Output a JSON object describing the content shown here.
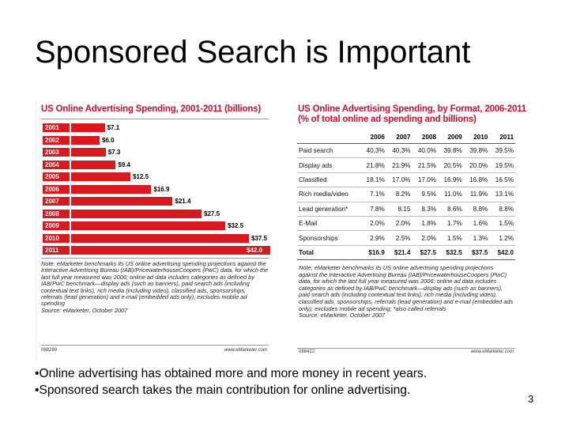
{
  "slide": {
    "title": "Sponsored Search is Important",
    "bullets": [
      "•Online advertising has obtained more and more money in recent years.",
      "•Sponsored search takes the main contribution for online advertising."
    ],
    "page_number": "3"
  },
  "left_chart": {
    "title": "US Online Advertising Spending, 2001-2011 (billions)",
    "note": "Note: eMarketer benchmarks its US online advertising spending projections against the Interactive Advertising Bureau (IAB)/PricewaterhouseCoopers (PwC) data, for which the last full year measured was 2006; online ad data includes categories as defined by IAB/PwC benchmark—display ads (such as banners), paid search ads (including contextual text links), rich media (including video), classified ads, sponsorships, referrals (lead generation) and e-mail (embedded ads only); excludes mobile ad spending",
    "source": "Source: eMarketer, October 2007",
    "figure_id": "088299",
    "brand": "www.eMarketer.com",
    "colors": {
      "bar": "#d71920",
      "title": "#c8102e"
    }
  },
  "chart_data": {
    "type": "bar",
    "orientation": "horizontal",
    "title": "US Online Advertising Spending, 2001-2011 (billions)",
    "categories": [
      "2001",
      "2002",
      "2003",
      "2004",
      "2005",
      "2006",
      "2007",
      "2008",
      "2009",
      "2010",
      "2011"
    ],
    "values": [
      7.1,
      6.0,
      7.3,
      9.4,
      12.5,
      16.9,
      21.4,
      27.5,
      32.5,
      37.5,
      42.0
    ],
    "value_labels": [
      "$7.1",
      "$6.0",
      "$7.3",
      "$9.4",
      "$12.5",
      "$16.9",
      "$21.4",
      "$27.5",
      "$32.5",
      "$37.5",
      "$42.0"
    ],
    "xlim": [
      0,
      42.0
    ],
    "grid": false,
    "legend": "none"
  },
  "right_table": {
    "title_line1": "US Online Advertising Spending, by Format, 2006-2011",
    "title_line2": "(% of total online ad spending and billions)",
    "headers": [
      "",
      "2006",
      "2007",
      "2008",
      "2009",
      "2010",
      "2011"
    ],
    "rows": [
      [
        "Paid search",
        "40.3%",
        "40.3%",
        "40.0%",
        "39.8%",
        "39.8%",
        "39.5%"
      ],
      [
        "Display ads",
        "21.8%",
        "21.9%",
        "21.5%",
        "20.5%",
        "20.0%",
        "19.5%"
      ],
      [
        "Classified",
        "18.1%",
        "17.0%",
        "17.0%",
        "16.9%",
        "16.8%",
        "16.5%"
      ],
      [
        "Rich media/video",
        "7.1%",
        "8.2%",
        "9.5%",
        "11.0%",
        "11.9%",
        "13.1%"
      ],
      [
        "Lead generation*",
        "7.8%",
        "8.15",
        "8.3%",
        "8.6%",
        "8.8%",
        "8.8%"
      ],
      [
        "E-Mail",
        "2.0%",
        "2.0%",
        "1.8%",
        "1.7%",
        "1.6%",
        "1.5%"
      ],
      [
        "Sponsorships",
        "2.9%",
        "2.5%",
        "2.0%",
        "1.5%",
        "1.3%",
        "1.2%"
      ]
    ],
    "total_row": [
      "Total",
      "$16.9",
      "$21.4",
      "$27.5",
      "$32.5",
      "$37.5",
      "$42.0"
    ],
    "note": "Note: eMarketer benchmarks its US online advertising spending projections against the Interactive Advertising Bureau (IAB)/PricewaterhouseCoopers (PwC) data, for which the last full year measured was 2006; online ad data includes categories as defined by IAB/PwC benchmark—display ads (such as banners), paid search ads (including contextual text links), rich media (including video), classified ads, sponsorships, referrals (lead generation) and e-mail (embedded ads only); excludes mobile ad spending; *also called referrals",
    "source": "Source: eMarketer, October 2007",
    "figure_id": "088422",
    "brand": "www.eMarketer.com"
  }
}
